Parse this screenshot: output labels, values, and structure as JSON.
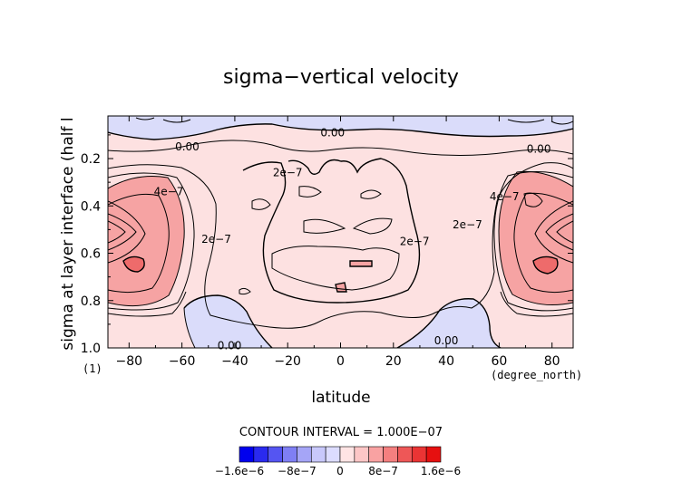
{
  "chart_data": {
    "type": "contour",
    "title": "sigma−vertical velocity",
    "xlabel": "latitude",
    "x_unit": "(degree_north)",
    "ylabel": "sigma at layer interface (half l",
    "y_unit": "(1)",
    "xlim": [
      -88,
      88
    ],
    "ylim": [
      1.0,
      0.02
    ],
    "x_ticks": [
      "−80",
      "−60",
      "−40",
      "−20",
      "0",
      "20",
      "40",
      "60",
      "80"
    ],
    "x_tick_values": [
      -80,
      -60,
      -40,
      -20,
      0,
      20,
      40,
      60,
      80
    ],
    "y_ticks": [
      "0.2",
      "0.4",
      "0.6",
      "0.8",
      "1.0"
    ],
    "y_tick_values": [
      0.2,
      0.4,
      0.6,
      0.8,
      1.0
    ],
    "contour_interval_text": "CONTOUR INTERVAL = 1.000E−07",
    "contour_labels": [
      {
        "text": "0.00",
        "lat": -58,
        "sigma": 0.15
      },
      {
        "text": "0.00",
        "lat": -3,
        "sigma": 0.09
      },
      {
        "text": "0.00",
        "lat": 75,
        "sigma": 0.16
      },
      {
        "text": "2e−7",
        "lat": -20,
        "sigma": 0.26
      },
      {
        "text": "4e−7",
        "lat": -65,
        "sigma": 0.34
      },
      {
        "text": "2e−7",
        "lat": -47,
        "sigma": 0.54
      },
      {
        "text": "2e−7",
        "lat": 28,
        "sigma": 0.55
      },
      {
        "text": "2e−7",
        "lat": 48,
        "sigma": 0.48
      },
      {
        "text": "4e−7",
        "lat": 62,
        "sigma": 0.36
      },
      {
        "text": "0.00",
        "lat": -42,
        "sigma": 0.99
      },
      {
        "text": "0.00",
        "lat": 40,
        "sigma": 0.97
      }
    ],
    "colorbar": {
      "colors": [
        "#0000ee",
        "#2a2aef",
        "#5555f2",
        "#7f7ff4",
        "#a5a5f7",
        "#c8c8fb",
        "#dcdcff",
        "#ffe4e4",
        "#fdc6c6",
        "#f9a2a2",
        "#f47f7f",
        "#ee5757",
        "#ea3434",
        "#e61010"
      ],
      "tick_labels": [
        "−1.6e−6",
        "−8e−7",
        "0",
        "8e−7",
        "1.6e−6"
      ]
    },
    "colors": {
      "positive_fill": "#fde1e1",
      "strong_positive_fill": "#f6a3a3",
      "peak_positive_fill": "#ee6b6b",
      "negative_fill": "#dadcfa"
    }
  }
}
